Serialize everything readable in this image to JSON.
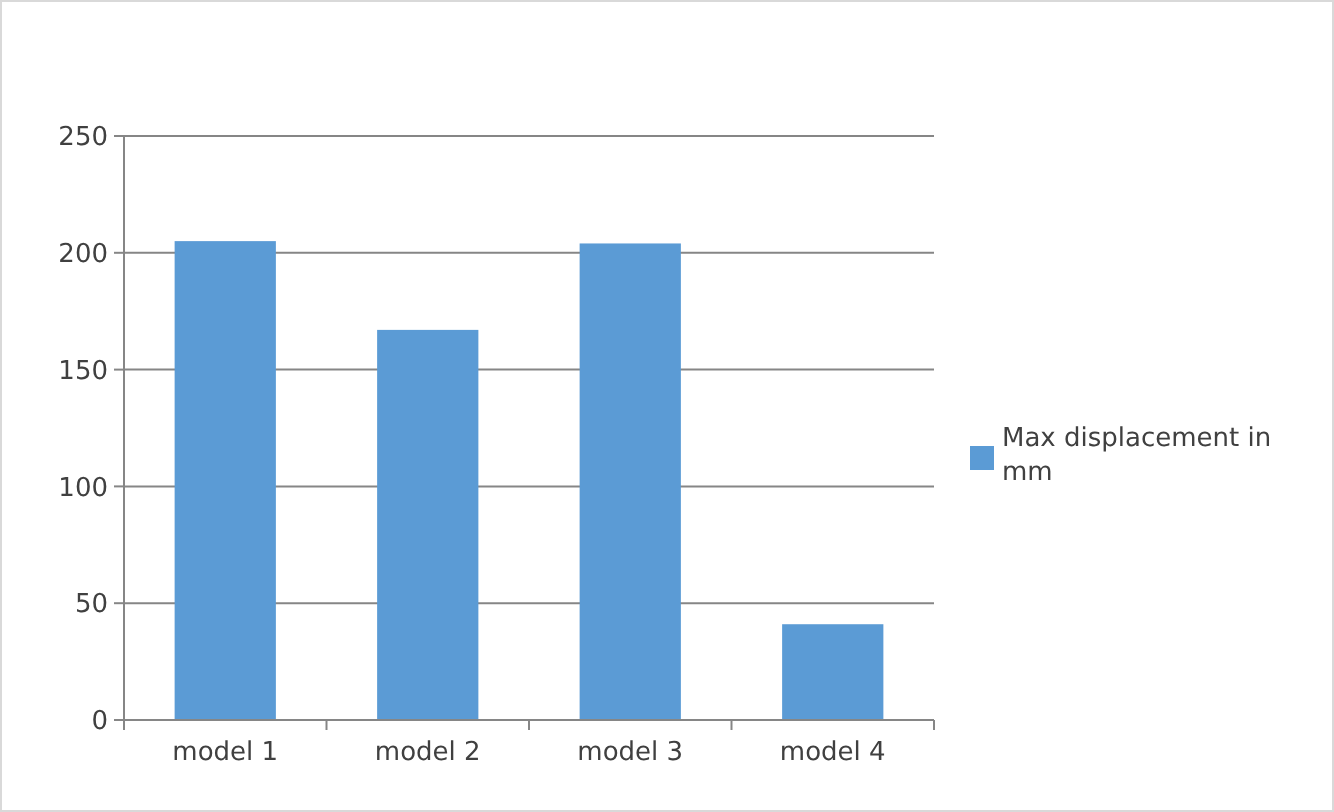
{
  "chart_data": {
    "type": "bar",
    "categories": [
      "model 1",
      "model 2",
      "model 3",
      "model 4"
    ],
    "series": [
      {
        "name": "Max displacement in mm",
        "color": "#5b9bd5",
        "values": [
          205,
          167,
          204,
          41
        ]
      }
    ],
    "ylim": [
      0,
      250
    ],
    "yticks": [
      0,
      50,
      100,
      150,
      200,
      250
    ],
    "grid": "y",
    "legend": "right"
  }
}
